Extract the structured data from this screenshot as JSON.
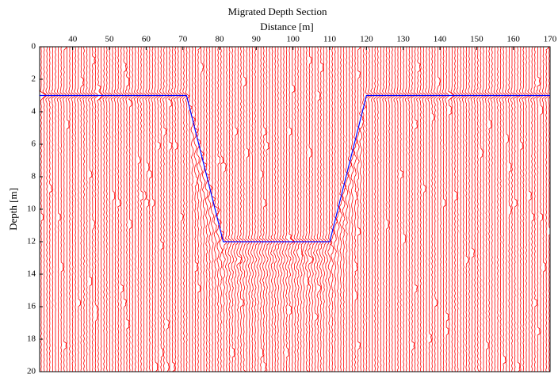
{
  "chart_data": {
    "type": "seismic",
    "title": "Migrated Depth Section",
    "xlabel": "Distance [m]",
    "ylabel": "Depth [m]",
    "xlim": [
      31,
      170
    ],
    "xticks": [
      40,
      50,
      60,
      70,
      80,
      90,
      100,
      110,
      120,
      130,
      140,
      150,
      160,
      170
    ],
    "ylim": [
      0,
      20
    ],
    "yticks": [
      0,
      2,
      4,
      6,
      8,
      10,
      12,
      14,
      16,
      18,
      20
    ],
    "y_reversed": true,
    "trace_color": "#ff0000",
    "series": [
      {
        "color": "#0000ff",
        "x": [
          31,
          71,
          81,
          110,
          120,
          170
        ],
        "values": [
          3,
          3,
          12,
          12,
          3,
          3
        ]
      }
    ]
  }
}
